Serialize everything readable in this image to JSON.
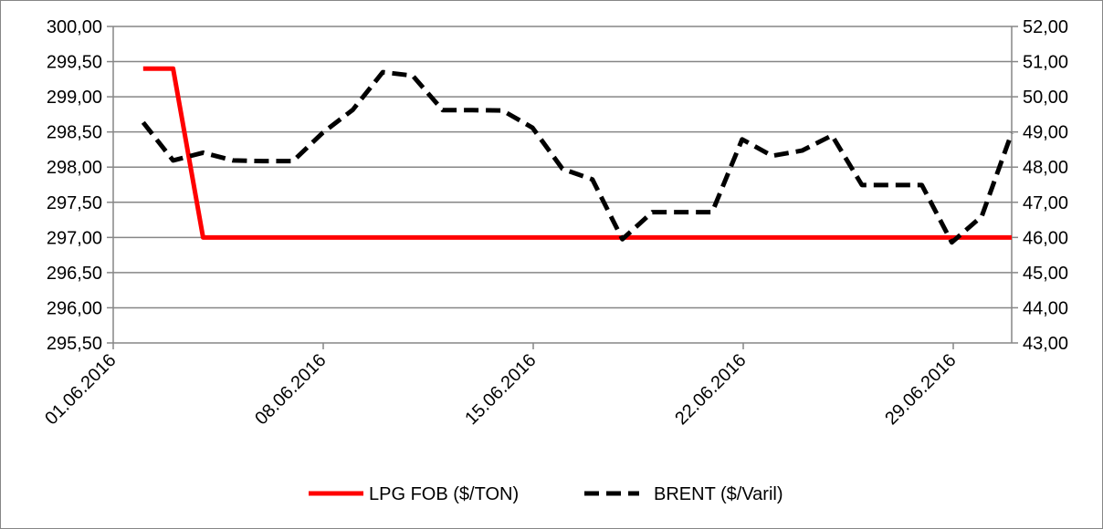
{
  "chart_data": {
    "type": "line",
    "title": "",
    "xlabel": "",
    "ylabel": "",
    "grid": true,
    "legend_position": "bottom",
    "x_ticks": [
      "01.06.2016",
      "08.06.2016",
      "15.06.2016",
      "22.06.2016",
      "29.06.2016"
    ],
    "y_left": {
      "min": 295.5,
      "max": 300.0,
      "step": 0.5,
      "tick_labels": [
        "295,50",
        "296,00",
        "296,50",
        "297,00",
        "297,50",
        "298,00",
        "298,50",
        "299,00",
        "299,50",
        "300,00"
      ]
    },
    "y_right": {
      "min": 43.0,
      "max": 52.0,
      "step": 1.0,
      "tick_labels": [
        "43,00",
        "44,00",
        "45,00",
        "46,00",
        "47,00",
        "48,00",
        "49,00",
        "50,00",
        "51,00",
        "52,00"
      ]
    },
    "series": [
      {
        "name": "LPG FOB ($/TON)",
        "axis": "left",
        "color": "#ff0000",
        "style": "solid",
        "points": [
          {
            "x": "2016-06-01",
            "y": 299.4
          },
          {
            "x": "2016-06-02",
            "y": 299.4
          },
          {
            "x": "2016-06-03",
            "y": 297.0
          },
          {
            "x": "2016-06-30",
            "y": 297.0
          }
        ]
      },
      {
        "name": "BRENT ($/Varil)",
        "axis": "right",
        "color": "#000000",
        "style": "dashed",
        "points": [
          {
            "x": "2016-06-01",
            "y": 49.27
          },
          {
            "x": "2016-06-02",
            "y": 48.19
          },
          {
            "x": "2016-06-03",
            "y": 48.41
          },
          {
            "x": "2016-06-04",
            "y": 48.19
          },
          {
            "x": "2016-06-05",
            "y": 48.17
          },
          {
            "x": "2016-06-06",
            "y": 48.17
          },
          {
            "x": "2016-06-07",
            "y": 48.98
          },
          {
            "x": "2016-06-08",
            "y": 49.63
          },
          {
            "x": "2016-06-09",
            "y": 50.7
          },
          {
            "x": "2016-06-10",
            "y": 50.6
          },
          {
            "x": "2016-06-11",
            "y": 49.62
          },
          {
            "x": "2016-06-12",
            "y": 49.62
          },
          {
            "x": "2016-06-13",
            "y": 49.61
          },
          {
            "x": "2016-06-14",
            "y": 49.12
          },
          {
            "x": "2016-06-15",
            "y": 47.95
          },
          {
            "x": "2016-06-16",
            "y": 47.65
          },
          {
            "x": "2016-06-17",
            "y": 45.95
          },
          {
            "x": "2016-06-18",
            "y": 46.72
          },
          {
            "x": "2016-06-19",
            "y": 46.72
          },
          {
            "x": "2016-06-20",
            "y": 46.72
          },
          {
            "x": "2016-06-21",
            "y": 48.79
          },
          {
            "x": "2016-06-22",
            "y": 48.32
          },
          {
            "x": "2016-06-23",
            "y": 48.47
          },
          {
            "x": "2016-06-24",
            "y": 48.9
          },
          {
            "x": "2016-06-25",
            "y": 47.49
          },
          {
            "x": "2016-06-26",
            "y": 47.49
          },
          {
            "x": "2016-06-27",
            "y": 47.49
          },
          {
            "x": "2016-06-28",
            "y": 45.86
          },
          {
            "x": "2016-06-29",
            "y": 46.6
          },
          {
            "x": "2016-06-30",
            "y": 48.97
          }
        ]
      }
    ]
  }
}
